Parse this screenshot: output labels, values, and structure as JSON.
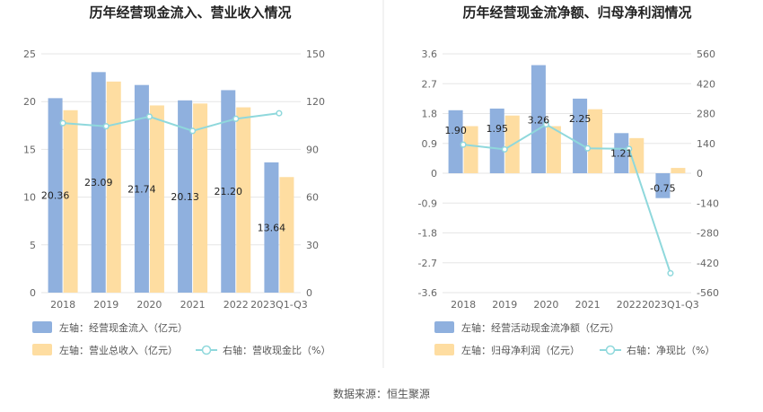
{
  "source": "数据来源：恒生聚源",
  "colors": {
    "bar1": "#8fb0de",
    "bar2": "#fedda1",
    "line": "#8fd8dc",
    "grid": "#e6e6e6",
    "divider": "#e5e5e5"
  },
  "chart_data": [
    {
      "type": "bar",
      "title": "历年经营现金流入、营业收入情况",
      "categories": [
        "2018",
        "2019",
        "2020",
        "2021",
        "2022",
        "2023Q1-Q3"
      ],
      "left_axis": {
        "min": 0,
        "max": 25,
        "ticks": [
          "0",
          "5",
          "10",
          "15",
          "20",
          "25"
        ]
      },
      "right_axis": {
        "min": 0,
        "max": 150,
        "ticks": [
          "0",
          "30",
          "60",
          "90",
          "120",
          "150"
        ]
      },
      "series": [
        {
          "name": "左轴：经营现金流入（亿元）",
          "kind": "bar",
          "axis": "left",
          "values": [
            20.36,
            23.09,
            21.74,
            20.13,
            21.2,
            13.64
          ],
          "labels": [
            "20.36",
            "23.09",
            "21.74",
            "20.13",
            "21.20",
            "13.64"
          ]
        },
        {
          "name": "左轴：营业总收入（亿元）",
          "kind": "bar",
          "axis": "left",
          "values": [
            19.1,
            22.1,
            19.6,
            19.8,
            19.4,
            12.1
          ]
        },
        {
          "name": "右轴：营收现金比（%）",
          "kind": "line",
          "axis": "right",
          "values": [
            106.5,
            104.5,
            110.6,
            101.6,
            109.2,
            112.7
          ]
        }
      ],
      "legend": "bottom"
    },
    {
      "type": "bar",
      "title": "历年经营现金流净额、归母净利润情况",
      "categories": [
        "2018",
        "2019",
        "2020",
        "2021",
        "2022",
        "2023Q1-Q3"
      ],
      "left_axis": {
        "min": -3.6,
        "max": 3.6,
        "ticks": [
          "-3.6",
          "-2.7",
          "-1.8",
          "-0.9",
          "0",
          "0.9",
          "1.8",
          "2.7",
          "3.6"
        ]
      },
      "right_axis": {
        "min": -560,
        "max": 560,
        "ticks": [
          "-560",
          "-420",
          "-280",
          "-140",
          "0",
          "140",
          "280",
          "420",
          "560"
        ]
      },
      "series": [
        {
          "name": "左轴：经营活动现金流净额（亿元）",
          "kind": "bar",
          "axis": "left",
          "values": [
            1.9,
            1.95,
            3.26,
            2.25,
            1.21,
            -0.75
          ],
          "labels": [
            "1.90",
            "1.95",
            "3.26",
            "2.25",
            "1.21",
            "-0.75"
          ]
        },
        {
          "name": "左轴：归母净利润（亿元）",
          "kind": "bar",
          "axis": "left",
          "values": [
            1.42,
            1.74,
            1.42,
            1.93,
            1.06,
            0.16
          ]
        },
        {
          "name": "右轴：净现比（%）",
          "kind": "line",
          "axis": "right",
          "values": [
            134,
            112,
            229,
            117,
            114,
            -469
          ]
        }
      ],
      "legend": "bottom"
    }
  ]
}
